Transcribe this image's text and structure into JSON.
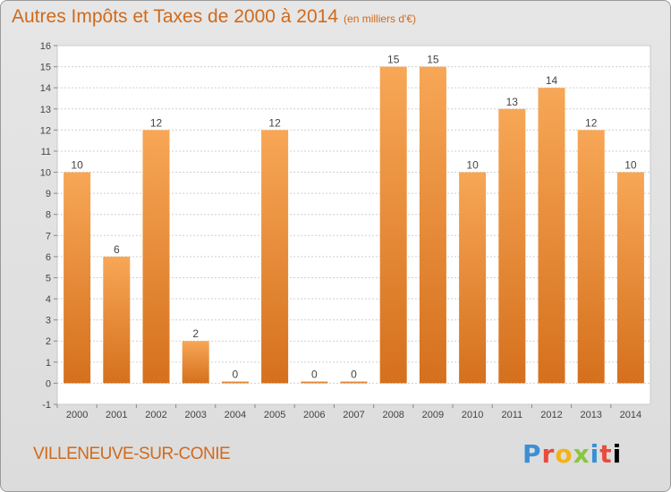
{
  "header": {
    "title": "Autres Impôts et Taxes de 2000 à 2014",
    "subtitle": "(en milliers d'€)"
  },
  "footer": {
    "location": "VILLENEUVE-SUR-CONIE",
    "brand_letters": [
      "P",
      "r",
      "o",
      "x",
      "i",
      "t",
      "i"
    ]
  },
  "colors": {
    "bar_top": "#f7a756",
    "bar_bottom": "#d5701d",
    "title": "#d06a1c",
    "grid": "#cfcfcf"
  },
  "chart_data": {
    "type": "bar",
    "title": "Autres Impôts et Taxes de 2000 à 2014",
    "categories": [
      "2000",
      "2001",
      "2002",
      "2003",
      "2004",
      "2005",
      "2006",
      "2007",
      "2008",
      "2009",
      "2010",
      "2011",
      "2012",
      "2013",
      "2014"
    ],
    "values": [
      10,
      6,
      12,
      2,
      0,
      12,
      0,
      0,
      15,
      15,
      10,
      13,
      14,
      12,
      10
    ],
    "data_labels": [
      "10",
      "6",
      "12",
      "2",
      "0",
      "12",
      "0",
      "0",
      "15",
      "15",
      "10",
      "13",
      "14",
      "12",
      "10"
    ],
    "y_ticks": [
      "-1",
      "0",
      "1",
      "2",
      "3",
      "4",
      "5",
      "6",
      "7",
      "8",
      "9",
      "10",
      "11",
      "12",
      "13",
      "14",
      "15",
      "16"
    ],
    "ylim": [
      -1,
      16
    ],
    "grid": true,
    "legend": "none"
  }
}
